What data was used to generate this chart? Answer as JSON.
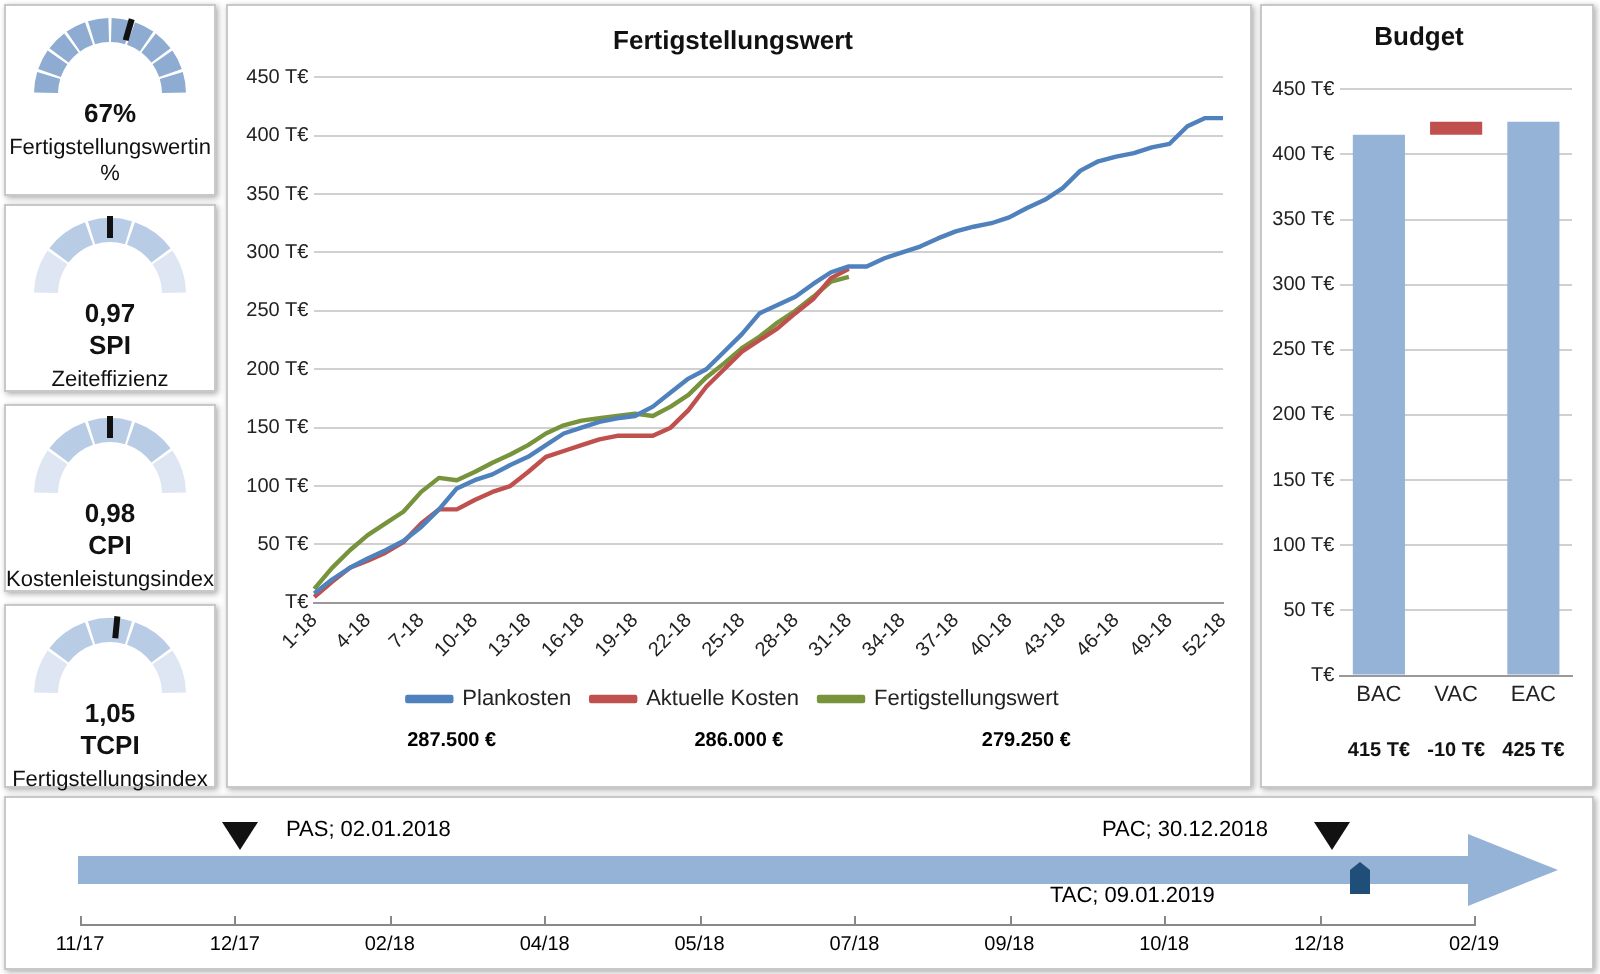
{
  "chart_data": [
    {
      "type": "other",
      "annotations": [
        "67%",
        "Fertigstellungswertin %"
      ]
    },
    {
      "type": "other",
      "title": "SPI",
      "annotations": [
        "0,97",
        "Zeiteffizienz"
      ]
    },
    {
      "type": "other",
      "title": "CPI",
      "annotations": [
        "0,98",
        "Kostenleistungsindex"
      ]
    },
    {
      "type": "other",
      "title": "TCPI",
      "annotations": [
        "1,05",
        "Fertigstellungsindex"
      ]
    },
    {
      "type": "line",
      "title": "Fertigstellungswert",
      "categories": [
        "1-18",
        null,
        null,
        "4-18",
        null,
        null,
        "7-18",
        null,
        null,
        "10-18",
        null,
        null,
        "13-18",
        null,
        null,
        "16-18",
        null,
        null,
        "19-18",
        null,
        null,
        "22-18",
        null,
        null,
        "25-18",
        null,
        null,
        "28-18",
        null,
        null,
        "31-18",
        null,
        null,
        "34-18",
        null,
        null,
        "37-18",
        null,
        null,
        "40-18",
        null,
        null,
        "43-18",
        null,
        null,
        "46-18",
        null,
        null,
        "49-18",
        null,
        null,
        "52-18"
      ],
      "series": [
        {
          "name": "Plankosten",
          "color": "#4f81bd",
          "values": [
            8,
            20,
            30,
            38,
            45,
            53,
            65,
            80,
            98,
            105,
            110,
            118,
            125,
            135,
            145,
            150,
            155,
            158,
            160,
            168,
            180,
            192,
            200,
            215,
            230,
            248,
            255,
            262,
            273,
            283,
            288,
            288,
            295,
            300,
            305,
            312,
            318,
            322,
            325,
            330,
            338,
            345,
            355,
            370,
            378,
            382,
            385,
            390,
            393,
            408,
            415,
            415
          ]
        },
        {
          "name": "Aktuelle Kosten",
          "color": "#c0504d",
          "values": [
            5,
            18,
            30,
            36,
            43,
            52,
            68,
            80,
            80,
            88,
            95,
            100,
            112,
            125,
            130,
            135,
            140,
            143,
            143,
            143,
            150,
            165,
            185,
            200,
            215,
            225,
            235,
            248,
            260,
            278,
            286,
            null,
            null,
            null,
            null,
            null,
            null,
            null,
            null,
            null,
            null,
            null,
            null,
            null,
            null,
            null,
            null,
            null,
            null,
            null,
            null,
            null
          ]
        },
        {
          "name": "Fertigstellungswert",
          "color": "#77933c",
          "values": [
            12,
            30,
            45,
            58,
            68,
            78,
            95,
            107,
            105,
            112,
            120,
            127,
            135,
            145,
            152,
            156,
            158,
            160,
            162,
            160,
            168,
            178,
            193,
            205,
            218,
            228,
            240,
            250,
            262,
            275,
            279,
            null,
            null,
            null,
            null,
            null,
            null,
            null,
            null,
            null,
            null,
            null,
            null,
            null,
            null,
            null,
            null,
            null,
            null,
            null,
            null,
            null
          ]
        }
      ],
      "ylim": [
        0,
        450
      ],
      "yticks": [
        {
          "value": 0,
          "label": "T€"
        },
        {
          "value": 50,
          "label": "50 T€"
        },
        {
          "value": 100,
          "label": "100 T€"
        },
        {
          "value": 150,
          "label": "150 T€"
        },
        {
          "value": 200,
          "label": "200 T€"
        },
        {
          "value": 250,
          "label": "250 T€"
        },
        {
          "value": 300,
          "label": "300 T€"
        },
        {
          "value": 350,
          "label": "350 T€"
        },
        {
          "value": 400,
          "label": "400 T€"
        },
        {
          "value": 450,
          "label": "450 T€"
        }
      ],
      "grid": "y",
      "legend": "bottom",
      "marker": "none",
      "line_style": "solid",
      "annotations": [
        "287.500 €",
        "286.000 €",
        "279.250 €"
      ]
    },
    {
      "type": "bar",
      "title": "Budget",
      "categories": [
        "BAC",
        "VAC",
        "EAC"
      ],
      "values": [
        415,
        -10,
        425
      ],
      "base": [
        0,
        425,
        0
      ],
      "colors": [
        "#95b3d7",
        "#c0504d",
        "#95b3d7"
      ],
      "value_labels": [
        "415 T€",
        "-10 T€",
        "425 T€"
      ],
      "ylim": [
        0,
        450
      ],
      "yticks": [
        {
          "value": 0,
          "label": "T€"
        },
        {
          "value": 50,
          "label": "50 T€"
        },
        {
          "value": 100,
          "label": "100 T€"
        },
        {
          "value": 150,
          "label": "150 T€"
        },
        {
          "value": 200,
          "label": "200 T€"
        },
        {
          "value": 250,
          "label": "250 T€"
        },
        {
          "value": 300,
          "label": "300 T€"
        },
        {
          "value": 350,
          "label": "350 T€"
        },
        {
          "value": 400,
          "label": "400 T€"
        },
        {
          "value": 450,
          "label": "450 T€"
        }
      ],
      "grid": "y",
      "legend": false
    },
    {
      "type": "other",
      "categories": [
        "11/17",
        "12/17",
        "02/18",
        "04/18",
        "05/18",
        "07/18",
        "09/18",
        "10/18",
        "12/18",
        "02/19"
      ],
      "annotations": [
        "PAS; 02.01.2018",
        "PAC; 30.12.2018",
        "TAC; 09.01.2019"
      ]
    }
  ]
}
